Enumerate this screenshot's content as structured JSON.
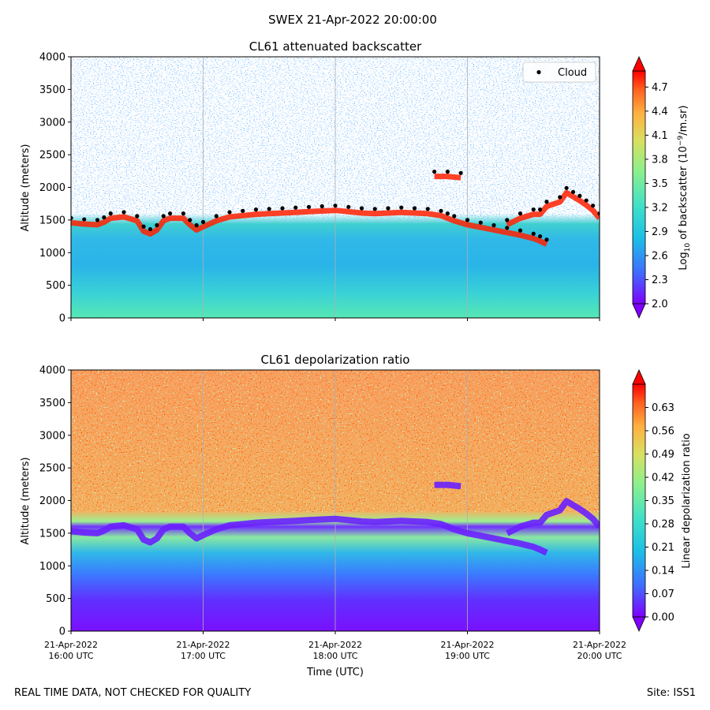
{
  "figure": {
    "suptitle": "SWEX 21-Apr-2022 20:00:00",
    "footer_left": "REAL TIME DATA, NOT CHECKED FOR QUALITY",
    "footer_right": "Site: ISS1"
  },
  "chart_data": [
    {
      "type": "heatmap",
      "title": "CL61 attenuated backscatter",
      "ylabel": "Altitude (meters)",
      "xlabel": "",
      "ylim": [
        0,
        4000
      ],
      "yticks": [
        0,
        500,
        1000,
        1500,
        2000,
        2500,
        3000,
        3500,
        4000
      ],
      "xlim_hours": [
        16,
        20
      ],
      "xticks_hours": [
        16,
        17,
        18,
        19,
        20
      ],
      "xtick_labels": [],
      "colorbar": {
        "label_prefix": "Log",
        "label_sub": "10",
        "label_mid": " of backscatter (10",
        "label_sup": "−9",
        "label_suffix": "/m.sr)",
        "range": [
          2.0,
          4.9
        ],
        "ticks": [
          "2.0",
          "2.3",
          "2.6",
          "2.9",
          "3.2",
          "3.5",
          "3.8",
          "4.1",
          "4.4",
          "4.7"
        ]
      },
      "legend": {
        "label": "Cloud",
        "position": "top-right"
      },
      "cloud_base": [
        [
          16.0,
          1530
        ],
        [
          16.1,
          1510
        ],
        [
          16.2,
          1500
        ],
        [
          16.25,
          1540
        ],
        [
          16.3,
          1600
        ],
        [
          16.4,
          1620
        ],
        [
          16.5,
          1560
        ],
        [
          16.55,
          1400
        ],
        [
          16.6,
          1360
        ],
        [
          16.65,
          1420
        ],
        [
          16.7,
          1560
        ],
        [
          16.75,
          1600
        ],
        [
          16.85,
          1600
        ],
        [
          16.9,
          1500
        ],
        [
          16.95,
          1420
        ],
        [
          17.0,
          1470
        ],
        [
          17.1,
          1560
        ],
        [
          17.2,
          1620
        ],
        [
          17.3,
          1640
        ],
        [
          17.4,
          1660
        ],
        [
          17.5,
          1670
        ],
        [
          17.6,
          1680
        ],
        [
          17.7,
          1690
        ],
        [
          17.8,
          1700
        ],
        [
          17.9,
          1710
        ],
        [
          18.0,
          1720
        ],
        [
          18.1,
          1700
        ],
        [
          18.2,
          1680
        ],
        [
          18.3,
          1670
        ],
        [
          18.4,
          1680
        ],
        [
          18.5,
          1690
        ],
        [
          18.6,
          1680
        ],
        [
          18.7,
          1670
        ],
        [
          18.8,
          1640
        ],
        [
          18.85,
          1600
        ],
        [
          18.9,
          1560
        ],
        [
          19.0,
          1500
        ],
        [
          19.1,
          1460
        ],
        [
          19.2,
          1420
        ],
        [
          19.3,
          1380
        ],
        [
          19.4,
          1340
        ],
        [
          19.5,
          1290
        ],
        [
          19.55,
          1250
        ],
        [
          19.6,
          1200
        ]
      ],
      "cloud_upper": [
        [
          19.3,
          1500
        ],
        [
          19.4,
          1600
        ],
        [
          19.5,
          1660
        ],
        [
          19.55,
          1660
        ],
        [
          19.6,
          1780
        ],
        [
          19.7,
          1850
        ],
        [
          19.75,
          1990
        ],
        [
          19.8,
          1930
        ],
        [
          19.85,
          1870
        ],
        [
          19.9,
          1800
        ],
        [
          19.95,
          1720
        ],
        [
          20.0,
          1600
        ]
      ],
      "cloud_patch": [
        [
          18.75,
          2240
        ],
        [
          18.85,
          2240
        ],
        [
          18.95,
          2220
        ]
      ]
    },
    {
      "type": "heatmap",
      "title": "CL61 depolarization ratio",
      "ylabel": "Altitude (meters)",
      "xlabel": "Time (UTC)",
      "ylim": [
        0,
        4000
      ],
      "yticks": [
        0,
        500,
        1000,
        1500,
        2000,
        2500,
        3000,
        3500,
        4000
      ],
      "xlim_hours": [
        16,
        20
      ],
      "xticks_hours": [
        16,
        17,
        18,
        19,
        20
      ],
      "xtick_labels": [
        [
          "21-Apr-2022",
          "16:00 UTC"
        ],
        [
          "21-Apr-2022",
          "17:00 UTC"
        ],
        [
          "21-Apr-2022",
          "18:00 UTC"
        ],
        [
          "21-Apr-2022",
          "19:00 UTC"
        ],
        [
          "21-Apr-2022",
          "20:00 UTC"
        ]
      ],
      "colorbar": {
        "label": "Linear depolarization ratio",
        "range": [
          0.0,
          0.7
        ],
        "ticks": [
          "0.00",
          "0.07",
          "0.14",
          "0.21",
          "0.28",
          "0.35",
          "0.42",
          "0.49",
          "0.56",
          "0.63"
        ]
      }
    }
  ],
  "colors": {
    "rainbow": [
      "#7f00ff",
      "#4169ff",
      "#1bbfe6",
      "#40e0c8",
      "#8cf08c",
      "#d8e060",
      "#ffb040",
      "#ff6020",
      "#ff0000"
    ],
    "cloud_marker": "#000000",
    "cloud_edge": "#ff2000",
    "gridline": "#b0b0b0"
  }
}
